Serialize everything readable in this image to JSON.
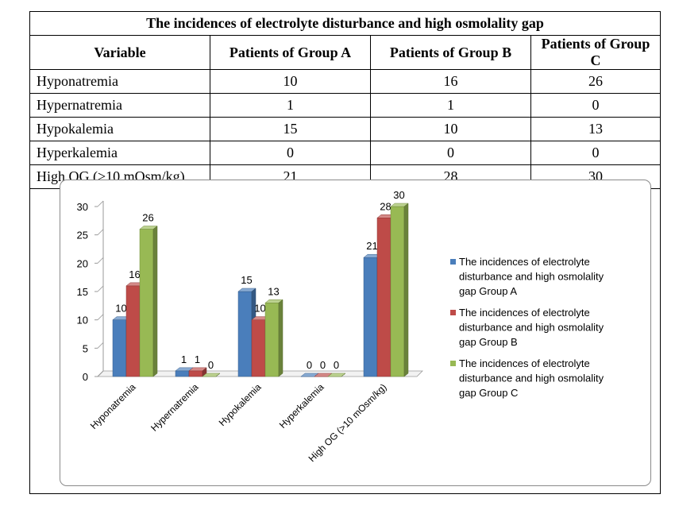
{
  "table": {
    "title": "The incidences of electrolyte disturbance and high osmolality gap",
    "headers": [
      "Variable",
      "Patients of Group A",
      "Patients of Group B",
      "Patients of Group C"
    ],
    "rows": [
      [
        "Hyponatremia",
        "10",
        "16",
        "26"
      ],
      [
        "Hypernatremia",
        "1",
        "1",
        "0"
      ],
      [
        "Hypokalemia",
        "15",
        "10",
        "13"
      ],
      [
        "Hyperkalemia",
        "0",
        "0",
        "0"
      ],
      [
        "High OG (>10 mOsm/kg)",
        "21",
        "28",
        "30"
      ]
    ]
  },
  "chart_data": {
    "type": "bar",
    "categories": [
      "Hyponatremia",
      "Hypernatremia",
      "Hypokalemia",
      "Hyperkalemia",
      "High OG (>10 mOsm/kg)"
    ],
    "series": [
      {
        "name": "The incidences of electrolyte disturbance and high osmolality gap Group A",
        "values": [
          10,
          1,
          15,
          0,
          21
        ],
        "color": "#4a7ebb"
      },
      {
        "name": "The incidences of electrolyte disturbance and high osmolality gap Group B",
        "values": [
          16,
          1,
          10,
          0,
          28
        ],
        "color": "#be4b48"
      },
      {
        "name": "The incidences of electrolyte disturbance and high osmolality gap Group C",
        "values": [
          26,
          0,
          13,
          0,
          30
        ],
        "color": "#98b954"
      }
    ],
    "yticks": [
      0,
      5,
      10,
      15,
      20,
      25,
      30
    ],
    "ylim": [
      0,
      30
    ],
    "legend_position": "right",
    "grid": false,
    "data_labels": true,
    "style": "3d-columns"
  }
}
